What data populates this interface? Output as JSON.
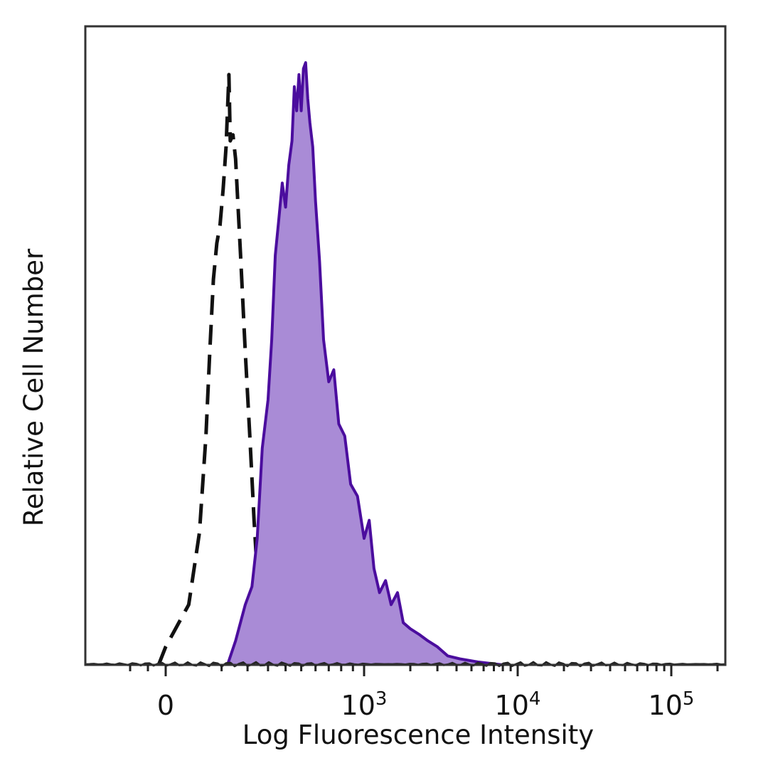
{
  "chart_data": {
    "type": "area",
    "title": "",
    "xlabel": "Log Fluorescence Intensity",
    "ylabel": "Relative Cell Number",
    "x_scale": "biexponential",
    "xlim": [
      -300,
      200000
    ],
    "ylim": [
      0,
      1.0
    ],
    "grid": false,
    "legend": "none",
    "x_ticks": [
      {
        "value": 0,
        "base": "0",
        "exp": ""
      },
      {
        "value": 1000,
        "base": "10",
        "exp": "3"
      },
      {
        "value": 10000,
        "base": "10",
        "exp": "4"
      },
      {
        "value": 100000,
        "base": "10",
        "exp": "5"
      }
    ],
    "series": [
      {
        "style": "dashed",
        "color": "#111111",
        "fill": "none",
        "points": [
          [
            -40,
            0.0
          ],
          [
            0,
            0.03
          ],
          [
            20,
            0.1
          ],
          [
            40,
            0.22
          ],
          [
            55,
            0.38
          ],
          [
            65,
            0.52
          ],
          [
            75,
            0.64
          ],
          [
            85,
            0.7
          ],
          [
            95,
            0.73
          ],
          [
            105,
            0.79
          ],
          [
            115,
            0.86
          ],
          [
            125,
            0.98
          ],
          [
            130,
            0.87
          ],
          [
            140,
            0.88
          ],
          [
            150,
            0.84
          ],
          [
            160,
            0.76
          ],
          [
            170,
            0.68
          ],
          [
            180,
            0.6
          ],
          [
            190,
            0.52
          ],
          [
            200,
            0.45
          ],
          [
            210,
            0.38
          ],
          [
            220,
            0.31
          ],
          [
            230,
            0.24
          ],
          [
            240,
            0.18
          ],
          [
            250,
            0.12
          ],
          [
            260,
            0.08
          ],
          [
            275,
            0.06
          ],
          [
            290,
            0.05
          ],
          [
            305,
            0.03
          ],
          [
            320,
            0.02
          ],
          [
            340,
            0.01
          ],
          [
            360,
            0.005
          ],
          [
            400,
            0.0
          ]
        ]
      },
      {
        "style": "solid",
        "color": "#4b0d9e",
        "fill": "#a98bd6",
        "points": [
          [
            120,
            0.0
          ],
          [
            150,
            0.04
          ],
          [
            190,
            0.1
          ],
          [
            220,
            0.13
          ],
          [
            245,
            0.21
          ],
          [
            270,
            0.36
          ],
          [
            300,
            0.44
          ],
          [
            320,
            0.54
          ],
          [
            340,
            0.68
          ],
          [
            360,
            0.74
          ],
          [
            380,
            0.8
          ],
          [
            400,
            0.76
          ],
          [
            420,
            0.83
          ],
          [
            440,
            0.87
          ],
          [
            455,
            0.96
          ],
          [
            470,
            0.92
          ],
          [
            485,
            0.98
          ],
          [
            500,
            0.92
          ],
          [
            515,
            0.99
          ],
          [
            530,
            1.0
          ],
          [
            545,
            0.94
          ],
          [
            560,
            0.9
          ],
          [
            580,
            0.86
          ],
          [
            600,
            0.77
          ],
          [
            630,
            0.67
          ],
          [
            660,
            0.54
          ],
          [
            700,
            0.47
          ],
          [
            740,
            0.49
          ],
          [
            780,
            0.4
          ],
          [
            830,
            0.38
          ],
          [
            880,
            0.3
          ],
          [
            940,
            0.28
          ],
          [
            1000,
            0.21
          ],
          [
            1080,
            0.24
          ],
          [
            1160,
            0.16
          ],
          [
            1260,
            0.12
          ],
          [
            1380,
            0.14
          ],
          [
            1500,
            0.1
          ],
          [
            1650,
            0.12
          ],
          [
            1800,
            0.07
          ],
          [
            2000,
            0.06
          ],
          [
            2300,
            0.05
          ],
          [
            2600,
            0.04
          ],
          [
            3000,
            0.03
          ],
          [
            3500,
            0.015
          ],
          [
            4200,
            0.01
          ],
          [
            5500,
            0.005
          ],
          [
            8000,
            0.0
          ]
        ]
      }
    ]
  }
}
